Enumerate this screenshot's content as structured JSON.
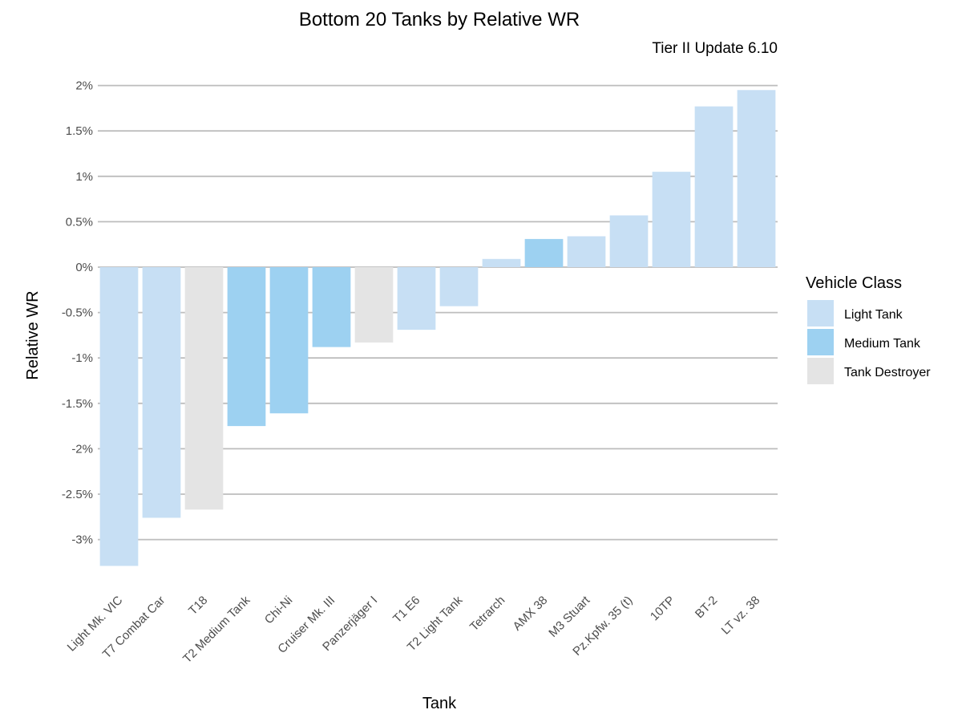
{
  "chart_data": {
    "type": "bar",
    "title": "Bottom 20 Tanks by Relative WR",
    "subtitle": "Tier II Update 6.10",
    "xlabel": "Tank",
    "ylabel": "Relative WR",
    "ylim": [
      -3.3,
      2.0
    ],
    "yticks": [
      2,
      1.5,
      1,
      0.5,
      0,
      -0.5,
      -1,
      -1.5,
      -2,
      -2.5,
      -3
    ],
    "ytick_labels": [
      "2%",
      "1.5%",
      "1%",
      "0.5%",
      "0%",
      "-0.5%",
      "-1%",
      "-1.5%",
      "-2%",
      "-2.5%",
      "-3%"
    ],
    "grid": true,
    "legend": {
      "title": "Vehicle Class",
      "position": "right",
      "entries": [
        {
          "label": "Light Tank",
          "color": "#c7dff4"
        },
        {
          "label": "Medium Tank",
          "color": "#9dd1f1"
        },
        {
          "label": "Tank Destroyer",
          "color": "#e4e4e4"
        }
      ]
    },
    "categories": [
      "Light Mk. VIC",
      "T7 Combat Car",
      "T18",
      "T2 Medium Tank",
      "Chi-Ni",
      "Cruiser Mk. III",
      "Panzerjäger I",
      "T1 E6",
      "T2 Light Tank",
      "Tetrarch",
      "AMX 38",
      "M3 Stuart",
      "Pz.Kpfw. 35 (t)",
      "10TP",
      "BT-2",
      "LT vz. 38"
    ],
    "values": [
      -3.29,
      -2.76,
      -2.67,
      -1.75,
      -1.61,
      -0.88,
      -0.83,
      -0.69,
      -0.43,
      0.09,
      0.31,
      0.34,
      0.57,
      1.05,
      1.77,
      1.95
    ],
    "classes": [
      "Light Tank",
      "Light Tank",
      "Tank Destroyer",
      "Medium Tank",
      "Medium Tank",
      "Medium Tank",
      "Tank Destroyer",
      "Light Tank",
      "Light Tank",
      "Light Tank",
      "Medium Tank",
      "Light Tank",
      "Light Tank",
      "Light Tank",
      "Light Tank",
      "Light Tank"
    ]
  }
}
